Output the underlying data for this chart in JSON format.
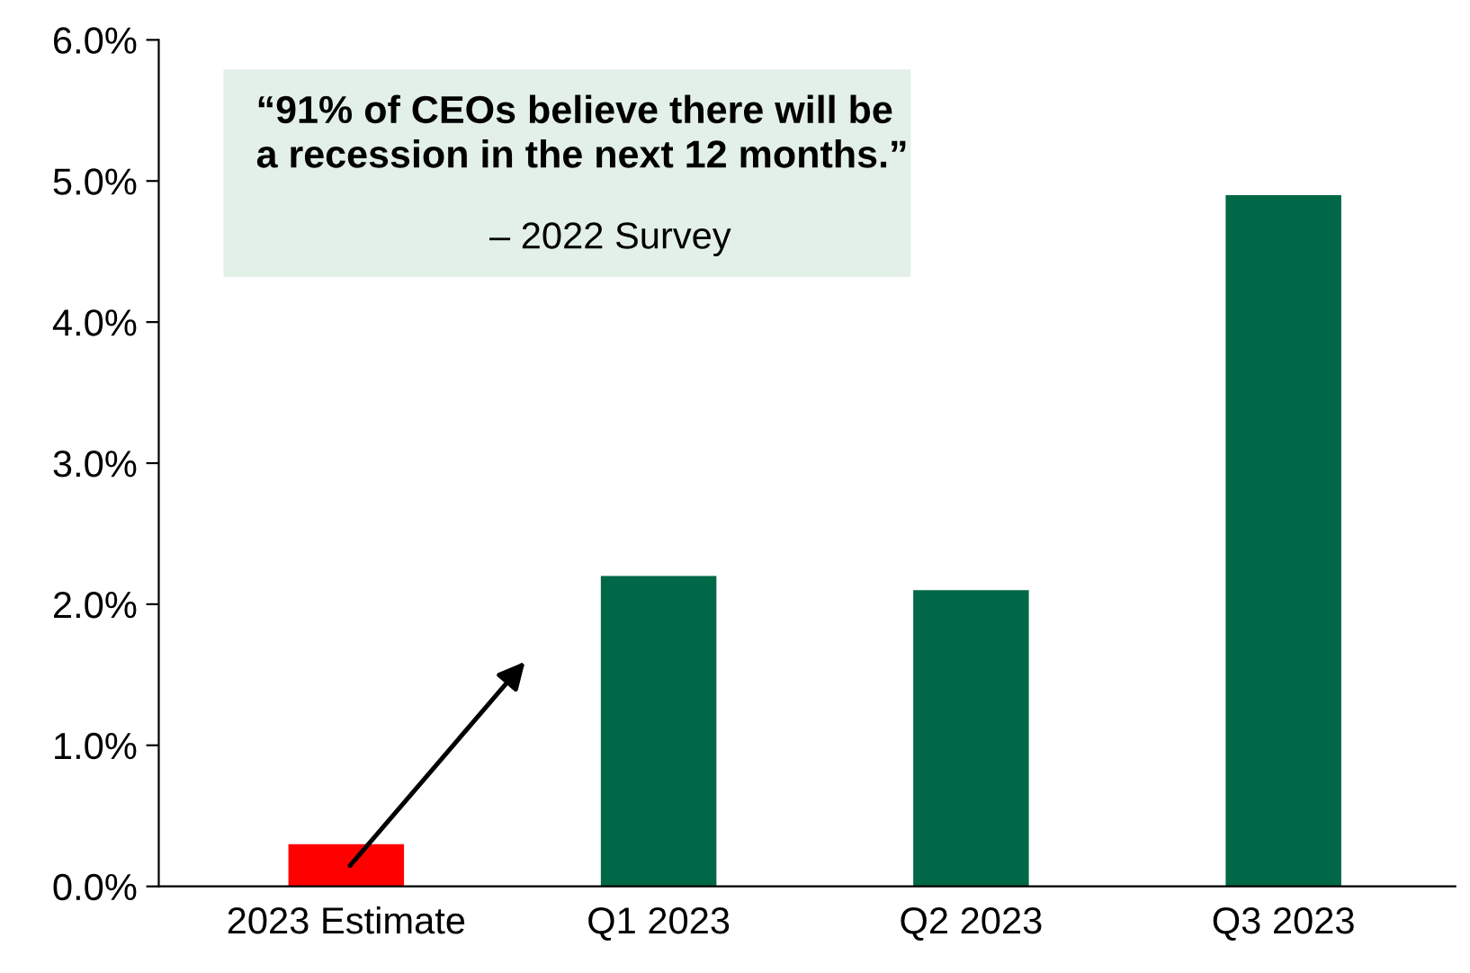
{
  "chart_data": {
    "type": "bar",
    "categories": [
      "2023 Estimate",
      "Q1 2023",
      "Q2 2023",
      "Q3 2023"
    ],
    "values": [
      0.3,
      2.2,
      2.1,
      4.9
    ],
    "colors": [
      "#ff0000",
      "#006847",
      "#006847",
      "#006847"
    ],
    "ylim": [
      0,
      6
    ],
    "yticks": [
      {
        "value": 0,
        "label": "0.0%"
      },
      {
        "value": 1,
        "label": "1.0%"
      },
      {
        "value": 2,
        "label": "2.0%"
      },
      {
        "value": 3,
        "label": "3.0%"
      },
      {
        "value": 4,
        "label": "4.0%"
      },
      {
        "value": 5,
        "label": "5.0%"
      },
      {
        "value": 6,
        "label": "6.0%"
      }
    ],
    "annotations": [
      "“91% of CEOs believe there will be\na recession in the next 12 months.”",
      "– 2022 Survey"
    ],
    "grid": false
  }
}
